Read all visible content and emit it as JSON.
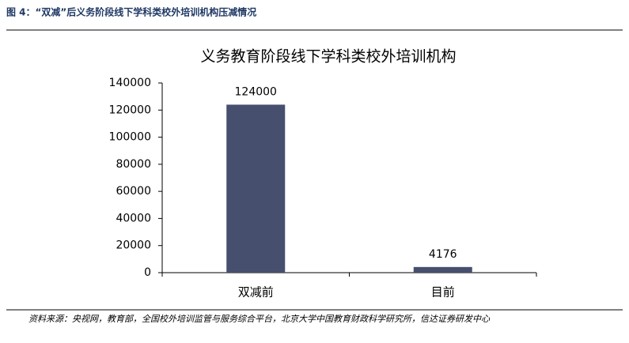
{
  "caption": "图 4：“双减”后义务阶段线下学科类校外培训机构压减情况",
  "source": "资料来源：央视网，教育部，全国校外培训监管与服务综合平台，北京大学中国教育财政科学研究所，信达证券研发中心",
  "chart_data": {
    "type": "bar",
    "title": "义务教育阶段线下学科类校外培训机构",
    "categories": [
      "双减前",
      "目前"
    ],
    "values": [
      124000,
      4176
    ],
    "color": "#474f6e",
    "ylim": [
      0,
      140000
    ],
    "yticks": [
      0,
      20000,
      40000,
      60000,
      80000,
      100000,
      120000,
      140000
    ],
    "data_labels": true
  }
}
